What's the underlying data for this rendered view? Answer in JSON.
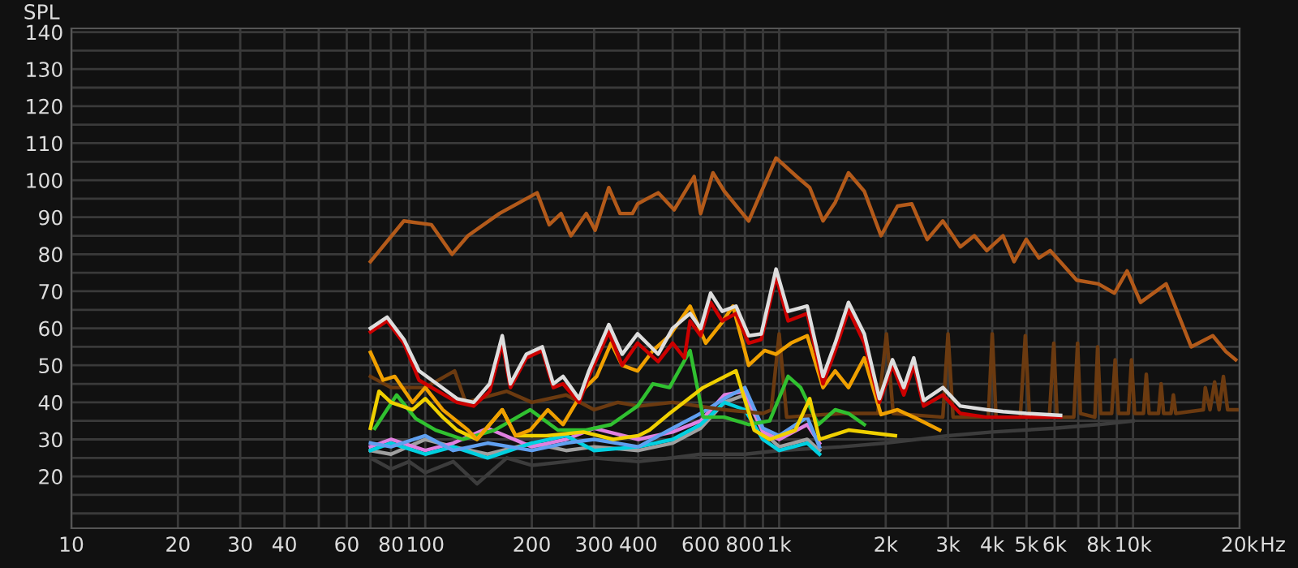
{
  "chart_data": {
    "type": "line",
    "ylabel": "SPL",
    "log": "x",
    "grid": true,
    "legend": false,
    "marker": "none",
    "line_style": "solid",
    "xlim": [
      10,
      20000
    ],
    "ylim": [
      6,
      141
    ],
    "xticks": [
      10,
      20,
      30,
      40,
      {
        "value": 50,
        "label": null
      },
      60,
      {
        "value": 70,
        "label": null
      },
      80,
      {
        "value": 90,
        "label": null
      },
      100,
      200,
      300,
      400,
      {
        "value": 500,
        "label": null
      },
      600,
      {
        "value": 700,
        "label": null
      },
      800,
      {
        "value": 900,
        "label": null
      },
      {
        "value": 1000,
        "label": "1k"
      },
      {
        "value": 2000,
        "label": "2k"
      },
      {
        "value": 3000,
        "label": "3k"
      },
      {
        "value": 4000,
        "label": "4k"
      },
      {
        "value": 5000,
        "label": "5k"
      },
      {
        "value": 6000,
        "label": "6k"
      },
      {
        "value": 7000,
        "label": null
      },
      {
        "value": 8000,
        "label": "8k"
      },
      {
        "value": 9000,
        "label": null
      },
      {
        "value": 10000,
        "label": "10k"
      },
      {
        "value": 20000,
        "label": "20k"
      }
    ],
    "xlabel": "Hz",
    "yticks": [
      {
        "value": 10,
        "label": null
      },
      {
        "value": 15,
        "label": null
      },
      20,
      {
        "value": 25,
        "label": null
      },
      30,
      {
        "value": 35,
        "label": null
      },
      40,
      {
        "value": 45,
        "label": null
      },
      50,
      {
        "value": 55,
        "label": null
      },
      60,
      {
        "value": 65,
        "label": null
      },
      70,
      {
        "value": 75,
        "label": null
      },
      80,
      {
        "value": 85,
        "label": null
      },
      90,
      {
        "value": 95,
        "label": null
      },
      100,
      {
        "value": 105,
        "label": null
      },
      110,
      {
        "value": 115,
        "label": null
      },
      120,
      {
        "value": 125,
        "label": null
      },
      130,
      {
        "value": 135,
        "label": null
      },
      140
    ],
    "series": [
      {
        "color": "#3c3c3c",
        "x": [
          70,
          80,
          90,
          100,
          120,
          140,
          170,
          200,
          250,
          300,
          400,
          500,
          600,
          800,
          1000,
          1500,
          2000,
          3000,
          4000,
          6000,
          8000,
          10000
        ],
        "values": [
          25,
          22,
          24,
          21,
          24,
          18,
          25,
          23,
          24,
          25,
          24,
          25,
          26,
          26,
          27,
          28,
          29,
          31,
          32,
          33,
          34,
          35
        ]
      },
      {
        "color": "#a0a0a0",
        "x": [
          70,
          80,
          100,
          120,
          150,
          200,
          250,
          300,
          400,
          500,
          600,
          700,
          800,
          900,
          1000,
          1200,
          1300
        ],
        "values": [
          27,
          26,
          30,
          28,
          26,
          29,
          27,
          28,
          27,
          29,
          33,
          40,
          42,
          32,
          28,
          30,
          27
        ]
      },
      {
        "color": "#e080e0",
        "x": [
          70,
          80,
          100,
          120,
          150,
          200,
          250,
          300,
          400,
          500,
          600,
          700,
          800,
          900,
          1000,
          1200,
          1300
        ],
        "values": [
          28,
          30,
          27,
          29,
          33,
          28,
          30,
          33,
          30,
          32,
          35,
          42,
          43,
          32,
          30,
          34,
          29
        ]
      },
      {
        "color": "#00d0e0",
        "x": [
          70,
          80,
          100,
          120,
          150,
          200,
          250,
          300,
          400,
          500,
          600,
          700,
          800,
          900,
          1000,
          1200,
          1300
        ],
        "values": [
          27,
          29,
          26,
          28,
          25,
          29,
          31,
          27,
          28,
          30,
          34,
          40,
          38,
          30,
          27,
          29,
          26
        ]
      },
      {
        "color": "#60a0f0",
        "x": [
          70,
          80,
          100,
          120,
          150,
          200,
          250,
          300,
          400,
          500,
          600,
          700,
          800,
          900,
          1000,
          1200,
          1300
        ],
        "values": [
          29,
          28,
          31,
          27,
          29,
          27,
          29,
          30,
          28,
          33,
          37,
          41,
          44,
          33,
          31,
          36,
          28
        ]
      },
      {
        "color": "#6b3a10",
        "x": [
          70,
          80,
          100,
          121,
          130,
          170,
          200,
          250,
          300,
          350,
          400,
          500,
          700,
          900,
          950,
          1000,
          1050,
          1500,
          1900,
          2010,
          2100,
          2900,
          3000,
          3100,
          3900,
          4000,
          4100,
          4800,
          4960,
          5100,
          5800,
          5970,
          6100,
          6800,
          6970,
          7100,
          7800,
          7940,
          8100,
          8700,
          8900,
          9100,
          9700,
          9900,
          10100,
          10700,
          10900,
          11100,
          11800,
          12000,
          12200,
          12800,
          13000,
          13200,
          15800,
          16000,
          16500,
          17000,
          17500,
          18000,
          18500,
          20000
        ],
        "values": [
          47,
          44,
          44,
          48.5,
          40,
          43,
          40,
          42,
          38,
          40,
          39,
          40,
          38,
          37,
          38,
          58.5,
          36,
          37,
          37,
          58.5,
          37,
          36,
          58.5,
          36,
          36,
          58.5,
          36,
          36,
          58,
          36,
          36,
          56,
          36,
          36,
          56,
          37,
          36,
          55,
          37,
          37,
          51.5,
          37,
          37,
          51.5,
          37,
          37,
          47.6,
          37,
          37,
          45,
          37,
          37,
          42,
          37,
          38,
          44,
          38,
          45.5,
          38,
          47,
          38,
          38
        ]
      },
      {
        "color": "#30c030",
        "x": [
          72,
          83,
          94,
          107,
          128,
          157,
          198,
          237,
          283,
          335,
          398,
          440,
          490,
          560,
          610,
          700,
          820,
          940,
          1060,
          1150,
          1290,
          1440,
          1570,
          1740
        ],
        "values": [
          33,
          42,
          35.6,
          32.5,
          30,
          32.5,
          38,
          32.5,
          32.5,
          34,
          39,
          45,
          44,
          54,
          36,
          36,
          34,
          35,
          47,
          44,
          34,
          38,
          37,
          34
        ]
      },
      {
        "color": "#f0d000",
        "x": [
          70,
          74,
          80,
          92,
          100,
          112,
          123,
          140,
          165,
          180,
          220,
          280,
          340,
          400,
          430,
          490,
          610,
          755,
          850,
          940,
          1110,
          1220,
          1300,
          1570,
          2130
        ],
        "values": [
          33,
          43,
          40,
          38,
          41,
          36,
          32.5,
          30,
          38,
          31,
          31,
          32,
          30,
          31,
          32.5,
          37,
          44,
          48.5,
          32.5,
          30,
          32.5,
          41,
          30,
          32.5,
          31
        ]
      },
      {
        "color": "#f0a000",
        "x": [
          70,
          76,
          82,
          92,
          100,
          112,
          132,
          140,
          165,
          180,
          198,
          222,
          245,
          283,
          305,
          335,
          360,
          398,
          440,
          490,
          560,
          620,
          690,
          740,
          820,
          910,
          980,
          1080,
          1200,
          1330,
          1440,
          1570,
          1740,
          1940,
          2160,
          2400,
          2840
        ],
        "values": [
          53.5,
          46,
          47,
          40,
          44,
          38,
          32.5,
          30,
          38,
          31,
          32.5,
          38,
          34,
          44,
          47,
          56,
          50,
          48.5,
          54,
          58,
          66,
          56,
          61.6,
          66,
          50,
          54,
          53,
          56,
          58,
          44,
          48.5,
          44,
          52,
          36.7,
          38,
          36,
          32.5
        ]
      },
      {
        "color": "#cc0000",
        "x": [
          70,
          78,
          87,
          96,
          123,
          137,
          152,
          165,
          174,
          193,
          214,
          230,
          245,
          272,
          290,
          330,
          360,
          398,
          455,
          500,
          540,
          560,
          600,
          640,
          690,
          755,
          820,
          890,
          980,
          1060,
          1200,
          1330,
          1440,
          1570,
          1740,
          1920,
          2090,
          2250,
          2400,
          2560,
          2900,
          3250,
          3860,
          4290,
          4990,
          6240
        ],
        "values": [
          59,
          62,
          56,
          46,
          40,
          39,
          43,
          56,
          44,
          52,
          54,
          44,
          45,
          40,
          47,
          59,
          50,
          56,
          51,
          56,
          52,
          62,
          58,
          67,
          62,
          64,
          56,
          57,
          74,
          62,
          64,
          45,
          54,
          65,
          56,
          40,
          50,
          42,
          50,
          39,
          42,
          37,
          36,
          36,
          36,
          36
        ]
      },
      {
        "color": "#dddddd",
        "x": [
          70,
          78,
          87,
          96,
          123,
          137,
          152,
          165,
          174,
          193,
          214,
          230,
          245,
          272,
          290,
          330,
          360,
          398,
          455,
          500,
          560,
          600,
          640,
          690,
          755,
          820,
          890,
          980,
          1060,
          1200,
          1330,
          1440,
          1570,
          1740,
          1920,
          2090,
          2250,
          2400,
          2560,
          2900,
          3250,
          3860,
          4290,
          4990,
          6240
        ],
        "values": [
          60,
          63,
          57,
          48.5,
          41,
          40,
          45,
          58,
          45,
          53,
          55,
          45,
          47,
          41,
          48.5,
          61,
          53,
          58.5,
          53,
          60,
          64,
          60,
          69.5,
          64.6,
          66,
          58,
          58.5,
          76,
          64.6,
          66,
          47,
          56,
          67,
          58.5,
          41,
          51.5,
          44,
          52,
          40.5,
          44,
          39,
          38,
          37.5,
          37,
          36.5
        ]
      },
      {
        "color": "#b35a1a",
        "x": [
          70,
          87,
          104,
          119,
          132,
          162,
          207,
          224,
          242,
          258,
          285,
          302,
          330,
          355,
          385,
          398,
          455,
          505,
          575,
          600,
          650,
          700,
          820,
          980,
          1120,
          1220,
          1330,
          1440,
          1570,
          1740,
          1940,
          2160,
          2370,
          2620,
          2900,
          3250,
          3560,
          3860,
          4290,
          4610,
          4990,
          5420,
          5830,
          6930,
          7980,
          8860,
          9620,
          10500,
          12400,
          14600,
          16800,
          18300,
          19500
        ],
        "values": [
          78,
          89,
          88,
          80,
          85,
          91,
          96.6,
          88,
          91,
          85,
          91,
          86.5,
          98,
          91,
          91,
          93.6,
          96.6,
          92,
          101,
          91,
          102,
          97,
          89,
          106,
          101,
          98,
          89,
          94,
          102,
          97,
          85,
          93,
          93.6,
          84,
          89,
          82,
          85,
          81,
          85,
          78,
          84,
          79,
          81,
          73,
          72,
          69.5,
          75.5,
          67,
          72,
          55,
          58,
          53.7,
          51.5
        ]
      }
    ]
  }
}
